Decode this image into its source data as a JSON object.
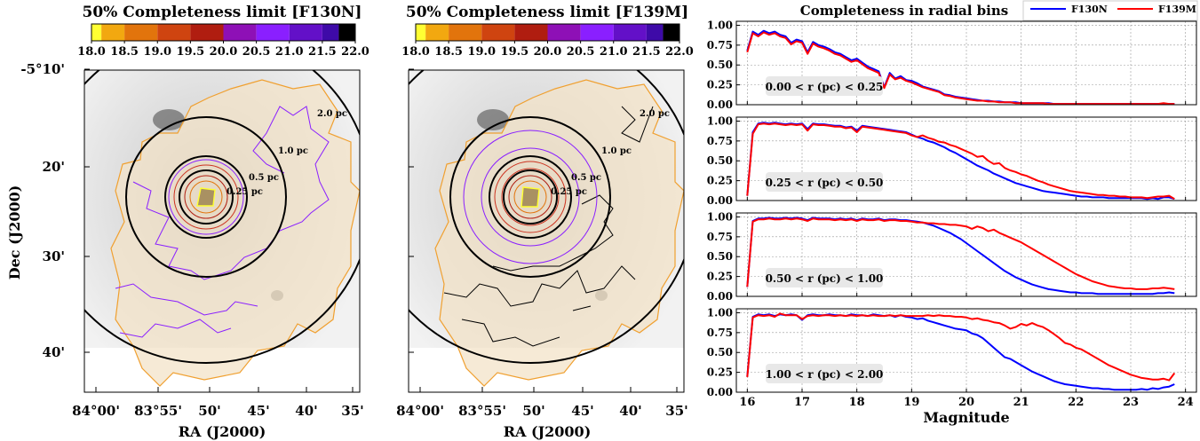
{
  "colors": {
    "bar": [
      "#ffff33",
      "#f2a810",
      "#e2740c",
      "#cf4410",
      "#b01d10",
      "#8e10b6",
      "#8a1fff",
      "#6310c8",
      "#3e0aa8",
      "#000000"
    ],
    "f130n": "#0000ff",
    "f139m": "#ff0000",
    "footprint": "#f0a030",
    "nebula_tint": "#f3e3c8",
    "contour_purple": "#8a1fff",
    "contour_red": "#cc3320",
    "contour_yellow": "#ffff33"
  },
  "maps": [
    {
      "title": "50% Completeness limit [F130N]",
      "cbar_ticks": [
        "18.0",
        "18.5",
        "19.0",
        "19.5",
        "20.0",
        "20.5",
        "21.0",
        "21.5",
        "22.0"
      ],
      "xlabel": "RA (J2000)",
      "ylabel": "Dec (J2000)",
      "xticks": [
        "84°00'",
        "83°55'",
        "50'",
        "45'",
        "40'",
        "35'"
      ],
      "yticks": [
        "-5°10'",
        "20'",
        "30'",
        "40'"
      ],
      "circle_labels": [
        "0.25 pc",
        "0.5 pc",
        "1.0 pc",
        "2.0 pc"
      ],
      "outer_contour": "purple"
    },
    {
      "title": "50% Completeness limit [F139M]",
      "cbar_ticks": [
        "18.0",
        "18.5",
        "19.0",
        "19.5",
        "20.0",
        "20.5",
        "21.0",
        "21.5",
        "22.0"
      ],
      "xlabel": "RA (J2000)",
      "xticks": [
        "84°00'",
        "83°55'",
        "50'",
        "45'",
        "40'",
        "35'"
      ],
      "circle_labels": [
        "0.25 pc",
        "0.5 pc",
        "1.0 pc",
        "2.0 pc"
      ],
      "outer_contour": "black"
    }
  ],
  "chart_data": {
    "type": "line",
    "title": "Completeness in radial bins",
    "xlabel": "Magnitude",
    "xlim": [
      15.8,
      24.2
    ],
    "ylim": [
      0,
      1.05
    ],
    "xticks": [
      "16",
      "17",
      "18",
      "19",
      "20",
      "21",
      "22",
      "23",
      "24"
    ],
    "yticks": [
      "0.00",
      "0.25",
      "0.50",
      "0.75",
      "1.00"
    ],
    "legend": {
      "placement": "top-right",
      "entries": [
        "F130N",
        "F139M"
      ]
    },
    "x": [
      16.0,
      16.1,
      16.2,
      16.3,
      16.4,
      16.5,
      16.6,
      16.7,
      16.8,
      16.9,
      17.0,
      17.1,
      17.2,
      17.3,
      17.4,
      17.5,
      17.6,
      17.7,
      17.8,
      17.9,
      18.0,
      18.1,
      18.2,
      18.3,
      18.4,
      18.5,
      18.6,
      18.7,
      18.8,
      18.9,
      19.0,
      19.1,
      19.2,
      19.3,
      19.4,
      19.5,
      19.6,
      19.7,
      19.8,
      19.9,
      20.0,
      20.1,
      20.2,
      20.3,
      20.4,
      20.5,
      20.6,
      20.7,
      20.8,
      20.9,
      21.0,
      21.1,
      21.2,
      21.3,
      21.4,
      21.5,
      21.6,
      21.7,
      21.8,
      21.9,
      22.0,
      22.1,
      22.2,
      22.3,
      22.4,
      22.5,
      22.6,
      22.7,
      22.8,
      22.9,
      23.0,
      23.1,
      23.2,
      23.3,
      23.4,
      23.5,
      23.6,
      23.7,
      23.8
    ],
    "panels": [
      {
        "label": "0.00 < r (pc) < 0.25",
        "series": [
          {
            "name": "F130N",
            "values": [
              0.68,
              0.92,
              0.88,
              0.93,
              0.9,
              0.92,
              0.88,
              0.86,
              0.78,
              0.82,
              0.8,
              0.66,
              0.79,
              0.75,
              0.73,
              0.7,
              0.66,
              0.64,
              0.6,
              0.56,
              0.58,
              0.53,
              0.48,
              0.45,
              0.42,
              0.22,
              0.4,
              0.33,
              0.36,
              0.31,
              0.3,
              0.27,
              0.23,
              0.21,
              0.19,
              0.17,
              0.13,
              0.12,
              0.1,
              0.09,
              0.08,
              0.07,
              0.06,
              0.05,
              0.05,
              0.04,
              0.04,
              0.03,
              0.03,
              0.03,
              0.02,
              0.02,
              0.02,
              0.02,
              0.02,
              0.02,
              0.01,
              0.01,
              0.01,
              0.01,
              0.01,
              0.01,
              0.01,
              0.01,
              0.01,
              0.01,
              0.01,
              0.01,
              0.01,
              0.01,
              0.01,
              0.01,
              0.01,
              0.01,
              0.01,
              0.01,
              0.01,
              0.01,
              0.01
            ]
          },
          {
            "name": "F139M",
            "values": [
              0.66,
              0.9,
              0.86,
              0.91,
              0.88,
              0.9,
              0.86,
              0.84,
              0.76,
              0.8,
              0.78,
              0.64,
              0.77,
              0.73,
              0.71,
              0.68,
              0.64,
              0.62,
              0.58,
              0.54,
              0.56,
              0.51,
              0.46,
              0.43,
              0.4,
              0.21,
              0.38,
              0.32,
              0.34,
              0.3,
              0.28,
              0.25,
              0.22,
              0.2,
              0.18,
              0.16,
              0.12,
              0.11,
              0.09,
              0.08,
              0.07,
              0.06,
              0.05,
              0.05,
              0.04,
              0.04,
              0.03,
              0.03,
              0.03,
              0.02,
              0.02,
              0.02,
              0.02,
              0.02,
              0.02,
              0.01,
              0.01,
              0.01,
              0.01,
              0.01,
              0.01,
              0.01,
              0.01,
              0.01,
              0.01,
              0.01,
              0.01,
              0.01,
              0.01,
              0.01,
              0.01,
              0.01,
              0.01,
              0.01,
              0.01,
              0.01,
              0.02,
              0.01,
              0.01
            ]
          }
        ]
      },
      {
        "label": "0.25 < r (pc) < 0.50",
        "series": [
          {
            "name": "F130N",
            "values": [
              0.06,
              0.86,
              0.97,
              0.98,
              0.97,
              0.98,
              0.97,
              0.96,
              0.97,
              0.96,
              0.97,
              0.9,
              0.97,
              0.96,
              0.96,
              0.95,
              0.94,
              0.94,
              0.92,
              0.93,
              0.88,
              0.94,
              0.93,
              0.92,
              0.91,
              0.9,
              0.89,
              0.88,
              0.87,
              0.86,
              0.83,
              0.8,
              0.78,
              0.75,
              0.73,
              0.7,
              0.67,
              0.63,
              0.6,
              0.56,
              0.52,
              0.48,
              0.44,
              0.41,
              0.38,
              0.34,
              0.31,
              0.28,
              0.25,
              0.22,
              0.2,
              0.18,
              0.16,
              0.14,
              0.12,
              0.11,
              0.1,
              0.09,
              0.08,
              0.07,
              0.06,
              0.05,
              0.05,
              0.04,
              0.04,
              0.04,
              0.03,
              0.03,
              0.03,
              0.03,
              0.03,
              0.03,
              0.03,
              0.02,
              0.03,
              0.02,
              0.04,
              0.04,
              0.02
            ]
          },
          {
            "name": "F139M",
            "values": [
              0.06,
              0.84,
              0.96,
              0.97,
              0.96,
              0.97,
              0.96,
              0.95,
              0.96,
              0.95,
              0.96,
              0.88,
              0.96,
              0.95,
              0.95,
              0.94,
              0.93,
              0.93,
              0.91,
              0.92,
              0.86,
              0.93,
              0.92,
              0.91,
              0.9,
              0.89,
              0.88,
              0.87,
              0.86,
              0.85,
              0.82,
              0.8,
              0.82,
              0.79,
              0.77,
              0.74,
              0.73,
              0.7,
              0.68,
              0.65,
              0.62,
              0.59,
              0.55,
              0.56,
              0.5,
              0.46,
              0.47,
              0.41,
              0.38,
              0.36,
              0.33,
              0.31,
              0.28,
              0.25,
              0.23,
              0.2,
              0.18,
              0.16,
              0.14,
              0.12,
              0.11,
              0.1,
              0.09,
              0.08,
              0.07,
              0.07,
              0.06,
              0.06,
              0.05,
              0.05,
              0.04,
              0.04,
              0.04,
              0.03,
              0.04,
              0.05,
              0.05,
              0.06,
              0.02
            ]
          }
        ]
      },
      {
        "label": "0.50 < r (pc) < 1.00",
        "series": [
          {
            "name": "F130N",
            "values": [
              0.12,
              0.95,
              0.98,
              0.98,
              0.99,
              0.98,
              0.98,
              0.99,
              0.98,
              0.99,
              0.98,
              0.96,
              0.99,
              0.98,
              0.98,
              0.98,
              0.97,
              0.98,
              0.97,
              0.98,
              0.96,
              0.98,
              0.97,
              0.97,
              0.98,
              0.96,
              0.97,
              0.97,
              0.96,
              0.96,
              0.95,
              0.94,
              0.93,
              0.91,
              0.89,
              0.86,
              0.83,
              0.8,
              0.76,
              0.72,
              0.67,
              0.62,
              0.57,
              0.52,
              0.47,
              0.42,
              0.37,
              0.32,
              0.28,
              0.24,
              0.21,
              0.18,
              0.15,
              0.13,
              0.11,
              0.09,
              0.08,
              0.07,
              0.06,
              0.05,
              0.05,
              0.04,
              0.04,
              0.04,
              0.03,
              0.03,
              0.03,
              0.03,
              0.03,
              0.03,
              0.03,
              0.03,
              0.03,
              0.03,
              0.03,
              0.04,
              0.04,
              0.05,
              0.04
            ]
          },
          {
            "name": "F139M",
            "values": [
              0.12,
              0.94,
              0.97,
              0.97,
              0.98,
              0.97,
              0.97,
              0.98,
              0.97,
              0.98,
              0.97,
              0.95,
              0.98,
              0.97,
              0.97,
              0.97,
              0.96,
              0.97,
              0.96,
              0.97,
              0.95,
              0.97,
              0.96,
              0.96,
              0.97,
              0.95,
              0.96,
              0.96,
              0.95,
              0.95,
              0.94,
              0.93,
              0.93,
              0.92,
              0.92,
              0.91,
              0.91,
              0.9,
              0.9,
              0.89,
              0.88,
              0.85,
              0.88,
              0.86,
              0.82,
              0.84,
              0.8,
              0.77,
              0.74,
              0.71,
              0.68,
              0.64,
              0.6,
              0.56,
              0.52,
              0.48,
              0.44,
              0.4,
              0.36,
              0.32,
              0.28,
              0.25,
              0.22,
              0.19,
              0.17,
              0.15,
              0.13,
              0.12,
              0.11,
              0.1,
              0.1,
              0.09,
              0.09,
              0.09,
              0.1,
              0.1,
              0.11,
              0.1,
              0.09
            ]
          }
        ]
      },
      {
        "label": "1.00 < r (pc) < 2.00",
        "series": [
          {
            "name": "F130N",
            "values": [
              0.2,
              0.95,
              0.98,
              0.97,
              0.98,
              0.96,
              0.98,
              0.97,
              0.98,
              0.97,
              0.91,
              0.97,
              0.98,
              0.97,
              0.97,
              0.98,
              0.97,
              0.97,
              0.96,
              0.98,
              0.97,
              0.97,
              0.96,
              0.98,
              0.97,
              0.96,
              0.97,
              0.95,
              0.97,
              0.95,
              0.94,
              0.92,
              0.93,
              0.9,
              0.88,
              0.86,
              0.84,
              0.82,
              0.8,
              0.79,
              0.78,
              0.74,
              0.72,
              0.68,
              0.62,
              0.56,
              0.5,
              0.44,
              0.42,
              0.38,
              0.34,
              0.3,
              0.26,
              0.23,
              0.2,
              0.17,
              0.14,
              0.12,
              0.1,
              0.09,
              0.08,
              0.07,
              0.06,
              0.05,
              0.05,
              0.04,
              0.04,
              0.03,
              0.03,
              0.03,
              0.03,
              0.03,
              0.04,
              0.03,
              0.05,
              0.04,
              0.06,
              0.07,
              0.1
            ]
          },
          {
            "name": "F139M",
            "values": [
              0.19,
              0.94,
              0.97,
              0.96,
              0.97,
              0.95,
              0.99,
              0.97,
              0.97,
              0.97,
              0.92,
              0.96,
              0.97,
              0.96,
              0.97,
              0.97,
              0.96,
              0.97,
              0.96,
              0.97,
              0.96,
              0.97,
              0.96,
              0.97,
              0.96,
              0.96,
              0.97,
              0.96,
              0.97,
              0.96,
              0.96,
              0.96,
              0.96,
              0.97,
              0.96,
              0.97,
              0.96,
              0.96,
              0.95,
              0.95,
              0.94,
              0.92,
              0.93,
              0.91,
              0.9,
              0.88,
              0.87,
              0.84,
              0.8,
              0.82,
              0.86,
              0.84,
              0.87,
              0.84,
              0.82,
              0.78,
              0.73,
              0.68,
              0.62,
              0.6,
              0.56,
              0.54,
              0.5,
              0.46,
              0.42,
              0.38,
              0.34,
              0.31,
              0.28,
              0.25,
              0.22,
              0.2,
              0.18,
              0.17,
              0.16,
              0.16,
              0.17,
              0.15,
              0.24
            ]
          }
        ]
      }
    ]
  }
}
